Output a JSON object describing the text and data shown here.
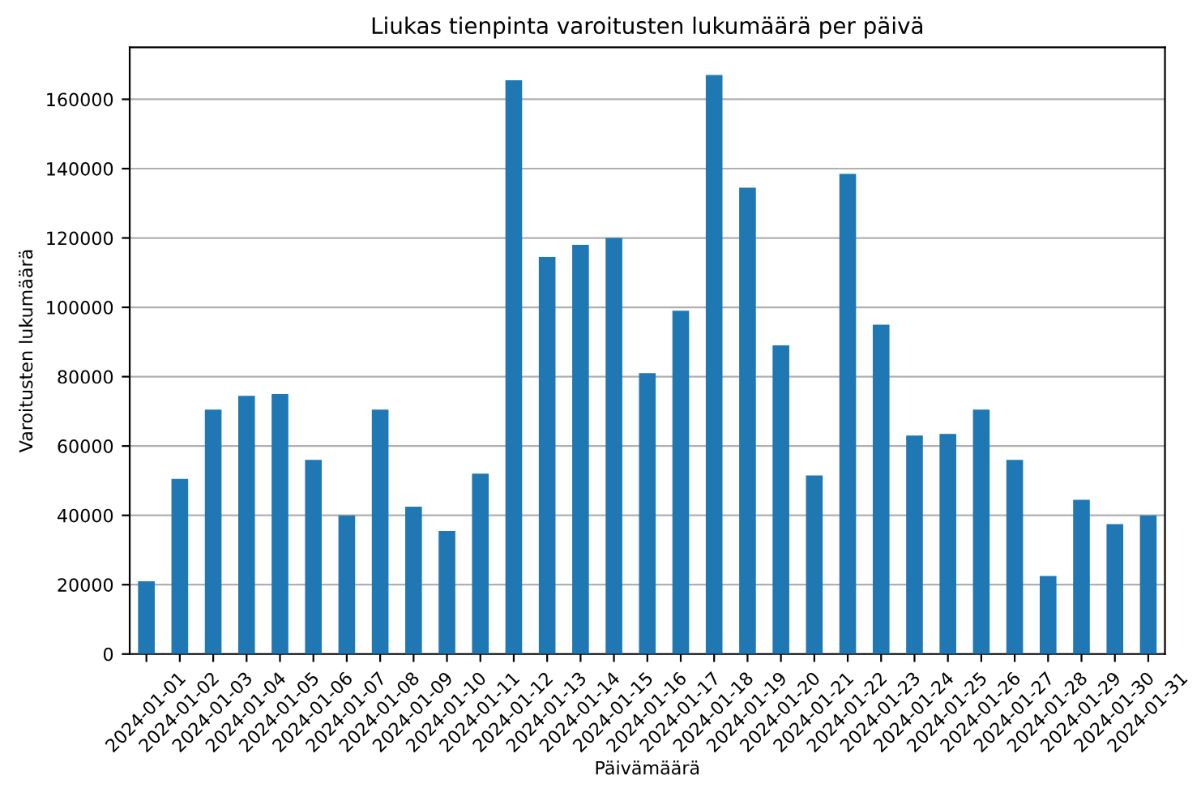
{
  "chart_data": {
    "type": "bar",
    "title": "Liukas tienpinta varoitusten lukumäärä per päivä",
    "xlabel": "Päivämäärä",
    "ylabel": "Varoitusten lukumäärä",
    "categories": [
      "2024-01-01",
      "2024-01-02",
      "2024-01-03",
      "2024-01-04",
      "2024-01-05",
      "2024-01-06",
      "2024-01-07",
      "2024-01-08",
      "2024-01-09",
      "2024-01-10",
      "2024-01-11",
      "2024-01-12",
      "2024-01-13",
      "2024-01-14",
      "2024-01-15",
      "2024-01-16",
      "2024-01-17",
      "2024-01-18",
      "2024-01-19",
      "2024-01-20",
      "2024-01-21",
      "2024-01-22",
      "2024-01-23",
      "2024-01-24",
      "2024-01-25",
      "2024-01-26",
      "2024-01-27",
      "2024-01-28",
      "2024-01-29",
      "2024-01-30",
      "2024-01-31"
    ],
    "values": [
      21000,
      50500,
      70500,
      74500,
      75000,
      56000,
      40000,
      70500,
      42500,
      35500,
      52000,
      165500,
      114500,
      118000,
      120000,
      81000,
      99000,
      167000,
      134500,
      89000,
      51500,
      138500,
      95000,
      63000,
      63500,
      70500,
      56000,
      22500,
      44500,
      37500,
      40000
    ],
    "color": "#1f77b4",
    "ylim": [
      0,
      175000
    ],
    "yticks": [
      0,
      20000,
      40000,
      60000,
      80000,
      100000,
      120000,
      140000,
      160000
    ],
    "grid": "y"
  }
}
